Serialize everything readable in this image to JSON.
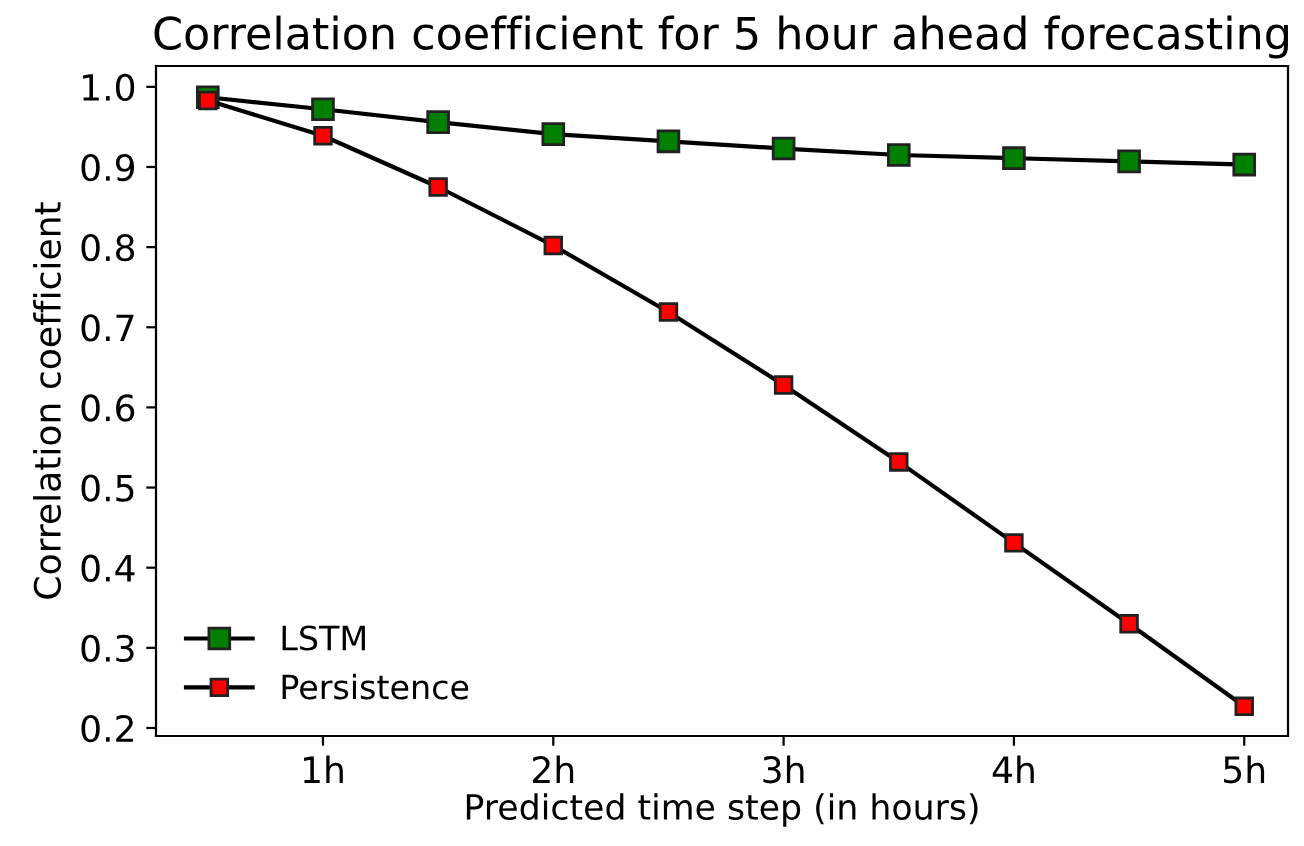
{
  "chart_data": {
    "type": "line",
    "title": "Correlation coefficient for 5 hour ahead forecasting",
    "xlabel": "Predicted time step (in hours)",
    "ylabel": "Correlation coefficient",
    "x": [
      0.5,
      1,
      1.5,
      2,
      2.5,
      3,
      3.5,
      4,
      4.5,
      5
    ],
    "series": [
      {
        "name": "LSTM",
        "color": "#007f00",
        "values": [
          0.987,
          0.972,
          0.956,
          0.941,
          0.932,
          0.923,
          0.915,
          0.911,
          0.907,
          0.903
        ]
      },
      {
        "name": "Persistence",
        "color": "#ff0000",
        "values": [
          0.983,
          0.939,
          0.875,
          0.802,
          0.719,
          0.628,
          0.532,
          0.431,
          0.33,
          0.227
        ]
      }
    ],
    "xlim": [
      0.275,
      5.19
    ],
    "ylim": [
      0.19,
      1.026
    ],
    "xticks": [
      {
        "value": 1,
        "label": "1h"
      },
      {
        "value": 2,
        "label": "2h"
      },
      {
        "value": 3,
        "label": "3h"
      },
      {
        "value": 4,
        "label": "4h"
      },
      {
        "value": 5,
        "label": "5h"
      }
    ],
    "yticks": [
      {
        "value": 0.2,
        "label": "0.2"
      },
      {
        "value": 0.3,
        "label": "0.3"
      },
      {
        "value": 0.4,
        "label": "0.4"
      },
      {
        "value": 0.5,
        "label": "0.5"
      },
      {
        "value": 0.6,
        "label": "0.6"
      },
      {
        "value": 0.7,
        "label": "0.7"
      },
      {
        "value": 0.8,
        "label": "0.8"
      },
      {
        "value": 0.9,
        "label": "0.9"
      },
      {
        "value": 1.0,
        "label": "1.0"
      }
    ],
    "marker": "square",
    "line_style": "solid",
    "grid": false,
    "legend": "bottom left"
  }
}
